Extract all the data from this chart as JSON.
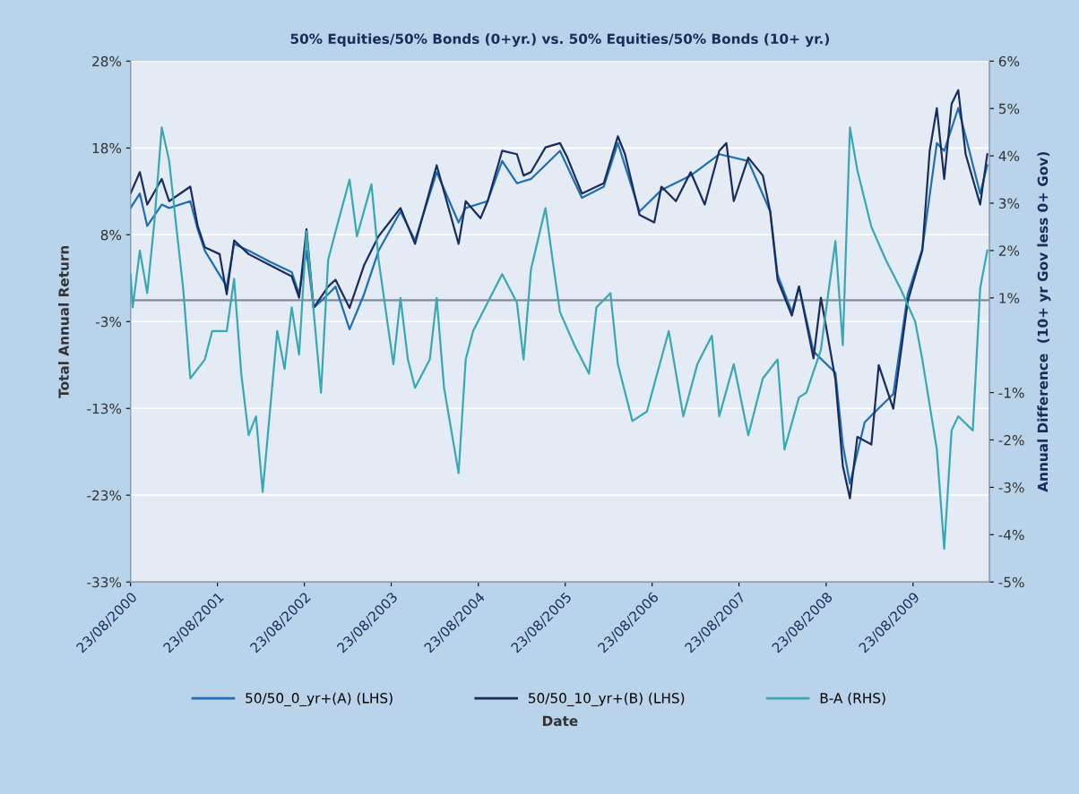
{
  "chart_data": {
    "type": "line",
    "title": "50% Equities/50% Bonds (0+yr.) vs. 50% Equities/50% Bonds (10+ yr.)",
    "xlabel": "Date",
    "ylabel": "Total Annual Return",
    "y2label": "Annual Difference  (10+ yr Gov less 0+ Gov)",
    "xlim": [
      "2000-08-23",
      "2010-07-10"
    ],
    "xticks": [
      {
        "value": "2000-08-23",
        "label": "23/08/2000"
      },
      {
        "value": "2001-08-23",
        "label": "23/08/2001"
      },
      {
        "value": "2002-08-23",
        "label": "23/08/2002"
      },
      {
        "value": "2003-08-23",
        "label": "23/08/2003"
      },
      {
        "value": "2004-08-23",
        "label": "23/08/2004"
      },
      {
        "value": "2005-08-23",
        "label": "23/08/2005"
      },
      {
        "value": "2006-08-23",
        "label": "23/08/2006"
      },
      {
        "value": "2007-08-23",
        "label": "23/08/2007"
      },
      {
        "value": "2008-08-23",
        "label": "23/08/2008"
      },
      {
        "value": "2009-08-23",
        "label": "23/08/2009"
      }
    ],
    "ylim": [
      -33,
      28
    ],
    "yticks": [
      {
        "value": 28,
        "label": "28%"
      },
      {
        "value": 17.83,
        "label": "18%"
      },
      {
        "value": 7.67,
        "label": "8%"
      },
      {
        "value": -2.5,
        "label": "-3%"
      },
      {
        "value": -12.67,
        "label": "-13%"
      },
      {
        "value": -22.83,
        "label": "-23%"
      },
      {
        "value": -33,
        "label": "-33%"
      }
    ],
    "y2lim": [
      -5,
      6
    ],
    "y2ticks": [
      {
        "value": 6,
        "label": "6%"
      },
      {
        "value": 5,
        "label": "5%"
      },
      {
        "value": 4,
        "label": "4%"
      },
      {
        "value": 3,
        "label": "3%"
      },
      {
        "value": 2,
        "label": "2%"
      },
      {
        "value": 1,
        "label": "1%"
      },
      {
        "value": -1,
        "label": "-1%"
      },
      {
        "value": -2,
        "label": "-2%"
      },
      {
        "value": -3,
        "label": "-3%"
      },
      {
        "value": -4,
        "label": "-4%"
      },
      {
        "value": -5,
        "label": "-5%"
      }
    ],
    "ref_lines": [
      {
        "axis": "y",
        "value": 0,
        "color": "#7f8a99"
      }
    ],
    "grid": "y",
    "legend": "bottom",
    "marker": "none",
    "line_style": "solid",
    "series": [
      {
        "name": "50/50_0_yr+(A) (LHS)",
        "color": "#1f6fb4",
        "x": [
          "2000-08-23",
          "2000-10",
          "2000-11",
          "2001-01",
          "2001-02",
          "2001-05",
          "2001-06",
          "2001-07",
          "2001-10",
          "2001-11",
          "2002-01",
          "2002-04",
          "2002-07",
          "2002-08",
          "2002-09",
          "2002-10",
          "2002-12",
          "2003-01",
          "2003-03",
          "2003-05",
          "2003-07",
          "2003-10",
          "2003-12",
          "2004-03",
          "2004-06",
          "2004-07",
          "2004-10",
          "2004-12",
          "2005-02",
          "2005-04",
          "2005-08",
          "2005-11",
          "2006-02",
          "2006-04",
          "2006-07",
          "2006-10",
          "2007-02",
          "2007-06",
          "2007-10",
          "2008-01",
          "2008-02",
          "2008-04",
          "2008-05",
          "2008-07",
          "2008-10",
          "2008-11",
          "2008-12",
          "2009-02",
          "2009-03",
          "2009-06",
          "2009-08",
          "2009-10",
          "2009-12",
          "2010-01",
          "2010-03",
          "2010-04",
          "2010-06",
          "2010-07"
        ],
        "values": [
          10.8,
          12.5,
          8.7,
          11.2,
          10.8,
          11.6,
          8.3,
          5.8,
          1.6,
          6.6,
          5.8,
          4.5,
          3.3,
          0.7,
          5.8,
          -0.9,
          0.7,
          1.6,
          -3.4,
          0.7,
          5.8,
          10.4,
          7.0,
          15.0,
          9.1,
          10.8,
          11.6,
          16.3,
          13.7,
          14.2,
          17.5,
          12.0,
          13.3,
          18.4,
          10.4,
          12.9,
          14.6,
          17.1,
          16.3,
          10.4,
          3.0,
          -1.4,
          1.6,
          -6.0,
          -8.5,
          -16.9,
          -21.5,
          -14.3,
          -13.5,
          -11.0,
          0.7,
          6.0,
          18.4,
          17.5,
          22.5,
          19.2,
          12.5,
          15.8
        ]
      },
      {
        "name": "50/50_10_yr+(B) (LHS)",
        "color": "#1a2d5a",
        "x": [
          "2000-08-23",
          "2000-10",
          "2000-11",
          "2001-01",
          "2001-02",
          "2001-05",
          "2001-06",
          "2001-07",
          "2001-09",
          "2001-10",
          "2001-11",
          "2002-01",
          "2002-04",
          "2002-07",
          "2002-08",
          "2002-09",
          "2002-10",
          "2002-12",
          "2003-01",
          "2003-03",
          "2003-05",
          "2003-07",
          "2003-10",
          "2003-12",
          "2004-03",
          "2004-06",
          "2004-07",
          "2004-09",
          "2004-10",
          "2004-12",
          "2005-02",
          "2005-03",
          "2005-04",
          "2005-06",
          "2005-08",
          "2005-09",
          "2005-11",
          "2006-01",
          "2006-02",
          "2006-04",
          "2006-05",
          "2006-07",
          "2006-09",
          "2006-10",
          "2006-12",
          "2007-02",
          "2007-04",
          "2007-06",
          "2007-07",
          "2007-08",
          "2007-10",
          "2007-12",
          "2008-01",
          "2008-02",
          "2008-04",
          "2008-05",
          "2008-07",
          "2008-08",
          "2008-10",
          "2008-11",
          "2008-12",
          "2009-01",
          "2009-03",
          "2009-04",
          "2009-06",
          "2009-08",
          "2009-10",
          "2009-11",
          "2009-12",
          "2010-01",
          "2010-02",
          "2010-03",
          "2010-04",
          "2010-06",
          "2010-07"
        ],
        "values": [
          12.5,
          15.0,
          11.2,
          14.2,
          11.6,
          13.3,
          8.7,
          6.2,
          5.4,
          0.7,
          7.0,
          5.4,
          4.1,
          2.8,
          0.3,
          8.3,
          -0.9,
          1.6,
          2.4,
          -0.9,
          4.1,
          7.5,
          10.8,
          6.6,
          15.8,
          6.6,
          11.6,
          9.6,
          11.6,
          17.5,
          17.1,
          14.6,
          15.0,
          17.9,
          18.4,
          16.7,
          12.5,
          13.3,
          13.7,
          19.2,
          17.1,
          10.0,
          9.1,
          13.3,
          11.6,
          15.0,
          11.2,
          17.5,
          18.4,
          11.6,
          16.7,
          14.6,
          10.4,
          2.4,
          -1.8,
          1.6,
          -6.8,
          0.3,
          -9.3,
          -19.4,
          -23.2,
          -16.0,
          -16.9,
          -7.6,
          -12.7,
          -0.1,
          5.8,
          17.5,
          22.5,
          14.2,
          23.0,
          24.6,
          17.1,
          11.2,
          17.1
        ]
      },
      {
        "name": "B-A (RHS)",
        "color": "#3aa8b0",
        "axis": "y2",
        "x": [
          "2000-08-23",
          "2000-09",
          "2000-10",
          "2000-11",
          "2000-12",
          "2001-01",
          "2001-02",
          "2001-03",
          "2001-04",
          "2001-05",
          "2001-07",
          "2001-08",
          "2001-10",
          "2001-11",
          "2001-12",
          "2002-01",
          "2002-02",
          "2002-03",
          "2002-05",
          "2002-06",
          "2002-07",
          "2002-08",
          "2002-09",
          "2002-11",
          "2002-12",
          "2003-01",
          "2003-03",
          "2003-04",
          "2003-06",
          "2003-07",
          "2003-09",
          "2003-10",
          "2003-11",
          "2003-12",
          "2004-02",
          "2004-03",
          "2004-04",
          "2004-06",
          "2004-07",
          "2004-08",
          "2004-10",
          "2004-12",
          "2005-02",
          "2005-03",
          "2005-04",
          "2005-06",
          "2005-07",
          "2005-08",
          "2005-10",
          "2005-12",
          "2006-01",
          "2006-03",
          "2006-04",
          "2006-06",
          "2006-08",
          "2006-11",
          "2007-01",
          "2007-03",
          "2007-05",
          "2007-06",
          "2007-08",
          "2007-10",
          "2007-12",
          "2008-02",
          "2008-03",
          "2008-05",
          "2008-06",
          "2008-08",
          "2008-09",
          "2008-10",
          "2008-11",
          "2008-12",
          "2009-01",
          "2009-03",
          "2009-05",
          "2009-07",
          "2009-09",
          "2009-10",
          "2009-12",
          "2010-01",
          "2010-02",
          "2010-03",
          "2010-05",
          "2010-06",
          "2010-07"
        ],
        "values": [
          1.5,
          0.8,
          2.0,
          1.1,
          2.6,
          4.6,
          3.9,
          2.6,
          1.2,
          -0.7,
          -0.3,
          0.3,
          0.3,
          1.4,
          -0.6,
          -1.9,
          -1.5,
          -3.1,
          0.3,
          -0.5,
          0.8,
          -0.2,
          2.4,
          -1.0,
          1.8,
          2.4,
          3.5,
          2.3,
          3.4,
          1.8,
          -0.4,
          1.0,
          -0.3,
          -0.9,
          -0.3,
          1.0,
          -0.9,
          -2.7,
          -0.3,
          0.3,
          0.9,
          1.5,
          0.9,
          -0.3,
          1.6,
          2.9,
          1.8,
          0.7,
          0.0,
          -0.6,
          0.8,
          1.1,
          -0.4,
          -1.6,
          -1.4,
          0.3,
          -1.5,
          -0.4,
          0.2,
          -1.5,
          -0.4,
          -1.9,
          -0.7,
          -0.3,
          -2.2,
          -1.1,
          -1.0,
          -0.1,
          1.1,
          2.2,
          0.0,
          4.6,
          3.7,
          2.5,
          1.8,
          1.2,
          0.5,
          -0.3,
          -2.2,
          -4.3,
          -1.8,
          -1.5,
          -1.8,
          1.2,
          2.0
        ]
      }
    ]
  }
}
